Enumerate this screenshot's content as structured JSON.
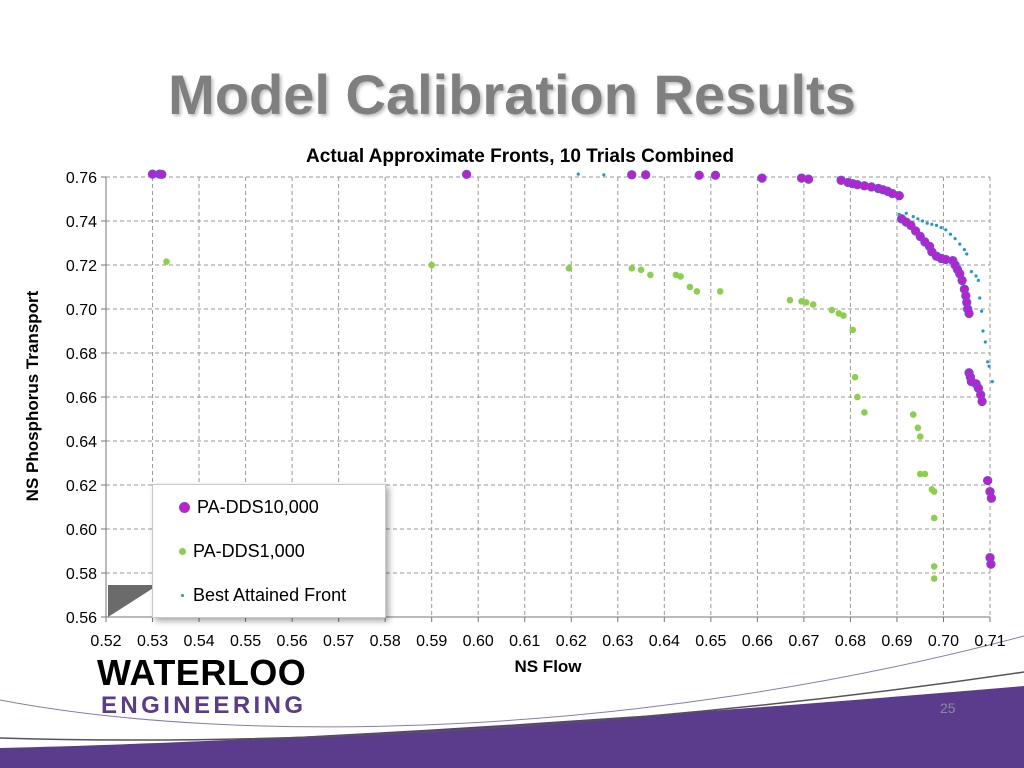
{
  "slide": {
    "title": "Model Calibration Results",
    "page_number": "25",
    "logo": {
      "top": "WATERLOO",
      "bottom": "ENGINEERING"
    }
  },
  "colors": {
    "dds10000": "#c81ac8",
    "dds10000_edge": "#6a4de0",
    "dds1000": "#8ccf4a",
    "best": "#1a9ad6",
    "title_gray": "#7f7f7f",
    "band_purple": "#5b3b8c"
  },
  "chart_data": {
    "type": "scatter",
    "title": "Actual Approximate Fronts, 10 Trials Combined",
    "xlabel": "NS Flow",
    "ylabel": "NS Phosphorus Transport",
    "xlim": [
      0.52,
      0.71
    ],
    "ylim": [
      0.56,
      0.76
    ],
    "x_ticks": [
      "0.52",
      "0.53",
      "0.54",
      "0.55",
      "0.56",
      "0.57",
      "0.58",
      "0.59",
      "0.60",
      "0.61",
      "0.62",
      "0.63",
      "0.64",
      "0.65",
      "0.66",
      "0.67",
      "0.68",
      "0.69",
      "0.70",
      "0.71"
    ],
    "y_ticks": [
      "0.56",
      "0.58",
      "0.60",
      "0.62",
      "0.64",
      "0.66",
      "0.68",
      "0.70",
      "0.72",
      "0.74",
      "0.76"
    ],
    "grid": true,
    "legend_position": "bottom-left",
    "series": [
      {
        "name": "PA-DDS10,000",
        "points": [
          [
            0.53,
            0.7613
          ],
          [
            0.5315,
            0.7613
          ],
          [
            0.532,
            0.7612
          ],
          [
            0.5975,
            0.7612
          ],
          [
            0.633,
            0.761
          ],
          [
            0.636,
            0.761
          ],
          [
            0.6475,
            0.7608
          ],
          [
            0.651,
            0.7608
          ],
          [
            0.661,
            0.7595
          ],
          [
            0.6695,
            0.7595
          ],
          [
            0.671,
            0.759
          ],
          [
            0.678,
            0.7585
          ],
          [
            0.6795,
            0.7575
          ],
          [
            0.6805,
            0.757
          ],
          [
            0.6815,
            0.7565
          ],
          [
            0.683,
            0.756
          ],
          [
            0.6845,
            0.7555
          ],
          [
            0.686,
            0.7548
          ],
          [
            0.687,
            0.7542
          ],
          [
            0.688,
            0.7535
          ],
          [
            0.689,
            0.7525
          ],
          [
            0.6905,
            0.7515
          ],
          [
            0.691,
            0.741
          ],
          [
            0.692,
            0.7395
          ],
          [
            0.693,
            0.738
          ],
          [
            0.694,
            0.7355
          ],
          [
            0.695,
            0.733
          ],
          [
            0.696,
            0.7305
          ],
          [
            0.697,
            0.7285
          ],
          [
            0.6975,
            0.726
          ],
          [
            0.6985,
            0.724
          ],
          [
            0.6995,
            0.723
          ],
          [
            0.7005,
            0.7225
          ],
          [
            0.702,
            0.722
          ],
          [
            0.7025,
            0.72
          ],
          [
            0.703,
            0.718
          ],
          [
            0.7035,
            0.716
          ],
          [
            0.704,
            0.713
          ],
          [
            0.7045,
            0.709
          ],
          [
            0.7048,
            0.706
          ],
          [
            0.705,
            0.703
          ],
          [
            0.7052,
            0.7
          ],
          [
            0.7055,
            0.698
          ],
          [
            0.7055,
            0.671
          ],
          [
            0.7058,
            0.669
          ],
          [
            0.706,
            0.667
          ],
          [
            0.707,
            0.666
          ],
          [
            0.7075,
            0.664
          ],
          [
            0.708,
            0.661
          ],
          [
            0.7083,
            0.658
          ],
          [
            0.7095,
            0.622
          ],
          [
            0.71,
            0.617
          ],
          [
            0.7103,
            0.614
          ],
          [
            0.71,
            0.587
          ],
          [
            0.7102,
            0.584
          ]
        ]
      },
      {
        "name": "PA-DDS1,000",
        "points": [
          [
            0.533,
            0.7215
          ],
          [
            0.59,
            0.72
          ],
          [
            0.6195,
            0.7185
          ],
          [
            0.633,
            0.7185
          ],
          [
            0.635,
            0.7178
          ],
          [
            0.637,
            0.7155
          ],
          [
            0.6425,
            0.7155
          ],
          [
            0.6435,
            0.7148
          ],
          [
            0.6455,
            0.71
          ],
          [
            0.647,
            0.708
          ],
          [
            0.652,
            0.708
          ],
          [
            0.667,
            0.704
          ],
          [
            0.6695,
            0.7035
          ],
          [
            0.6705,
            0.703
          ],
          [
            0.672,
            0.702
          ],
          [
            0.676,
            0.6995
          ],
          [
            0.6775,
            0.698
          ],
          [
            0.6785,
            0.697
          ],
          [
            0.6805,
            0.6905
          ],
          [
            0.681,
            0.669
          ],
          [
            0.6815,
            0.66
          ],
          [
            0.683,
            0.653
          ],
          [
            0.6935,
            0.652
          ],
          [
            0.6945,
            0.646
          ],
          [
            0.695,
            0.642
          ],
          [
            0.695,
            0.625
          ],
          [
            0.696,
            0.625
          ],
          [
            0.6975,
            0.618
          ],
          [
            0.698,
            0.617
          ],
          [
            0.698,
            0.605
          ],
          [
            0.698,
            0.583
          ],
          [
            0.698,
            0.5775
          ]
        ]
      },
      {
        "name": "Best Attained Front",
        "points": [
          [
            0.6215,
            0.7613
          ],
          [
            0.627,
            0.761
          ],
          [
            0.6905,
            0.743
          ],
          [
            0.692,
            0.7435
          ],
          [
            0.6935,
            0.742
          ],
          [
            0.6945,
            0.741
          ],
          [
            0.6955,
            0.74
          ],
          [
            0.6965,
            0.739
          ],
          [
            0.6975,
            0.7385
          ],
          [
            0.6985,
            0.738
          ],
          [
            0.6995,
            0.737
          ],
          [
            0.7005,
            0.736
          ],
          [
            0.7015,
            0.734
          ],
          [
            0.7025,
            0.732
          ],
          [
            0.7035,
            0.7295
          ],
          [
            0.7045,
            0.727
          ],
          [
            0.705,
            0.725
          ],
          [
            0.706,
            0.717
          ],
          [
            0.707,
            0.715
          ],
          [
            0.7075,
            0.713
          ],
          [
            0.7078,
            0.705
          ],
          [
            0.7082,
            0.699
          ],
          [
            0.7085,
            0.69
          ],
          [
            0.709,
            0.685
          ],
          [
            0.7095,
            0.676
          ],
          [
            0.7098,
            0.674
          ],
          [
            0.7105,
            0.667
          ]
        ]
      }
    ]
  }
}
